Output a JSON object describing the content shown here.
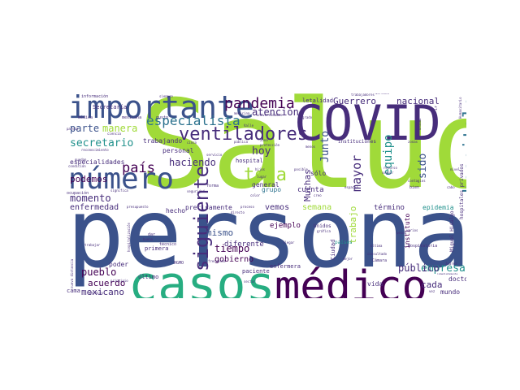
{
  "colors": {
    "background": "#ffffff",
    "c1": "#3b528b",
    "c2": "#440154",
    "c3": "#21918c",
    "c4": "#5ec962",
    "c5": "#a0da39",
    "c6": "#2c728e",
    "c7": "#fde725",
    "c8": "#472d7b",
    "c9": "#27ad81"
  },
  "words": [
    {
      "text": "Salud",
      "c": "c5"
    },
    {
      "text": "persona",
      "c": "c1"
    },
    {
      "text": "casos",
      "c": "c9"
    },
    {
      "text": "médico",
      "c": "c2"
    },
    {
      "text": "COVID",
      "c": "c8"
    },
    {
      "text": "importante",
      "c": "c1"
    },
    {
      "text": "número",
      "c": "c1"
    },
    {
      "text": "hospitales",
      "c": "c6"
    },
    {
      "text": "ventiladores",
      "c": "c8"
    },
    {
      "text": "pandemia",
      "c": "c2"
    },
    {
      "text": "especialista",
      "c": "c6"
    },
    {
      "text": "país",
      "c": "c2"
    },
    {
      "text": "toda",
      "c": "c5"
    },
    {
      "text": "siguiente",
      "c": "c8"
    },
    {
      "text": "mayor",
      "c": "c8"
    },
    {
      "text": "equipo",
      "c": "c3"
    },
    {
      "text": "Junto",
      "c": "c1"
    },
    {
      "text": "sido",
      "c": "c1"
    },
    {
      "text": "Muchas",
      "c": "c8"
    },
    {
      "text": "Guerrero",
      "c": "c8"
    },
    {
      "text": "nacional",
      "c": "c8"
    },
    {
      "text": "secretario",
      "c": "c3"
    },
    {
      "text": "atención",
      "c": "c8"
    },
    {
      "text": "parte",
      "c": "c1"
    },
    {
      "text": "manera",
      "c": "c5"
    },
    {
      "text": "hoy",
      "c": "c8"
    },
    {
      "text": "haciendo",
      "c": "c8"
    },
    {
      "text": "momento",
      "c": "c8"
    },
    {
      "text": "enfermedad",
      "c": "c8"
    },
    {
      "text": "podemos",
      "c": "c2"
    },
    {
      "text": "semana",
      "c": "c5"
    },
    {
      "text": "trabajo",
      "c": "c5"
    },
    {
      "text": "empresa",
      "c": "c3"
    },
    {
      "text": "público",
      "c": "c8"
    },
    {
      "text": "cada",
      "c": "c8"
    },
    {
      "text": "pueblo",
      "c": "c2"
    },
    {
      "text": "acuerdo",
      "c": "c2"
    },
    {
      "text": "mexicano",
      "c": "c8"
    },
    {
      "text": "tiempo",
      "c": "c2"
    },
    {
      "text": "mismo",
      "c": "c1"
    },
    {
      "text": "gobierno",
      "c": "c2"
    },
    {
      "text": "diferente",
      "c": "c8"
    },
    {
      "text": "ejemplo",
      "c": "c2"
    },
    {
      "text": "vemos",
      "c": "c8"
    },
    {
      "text": "cuenta",
      "c": "c8"
    },
    {
      "text": "general",
      "c": "c8"
    },
    {
      "text": "grupo",
      "c": "c6"
    },
    {
      "text": "término",
      "c": "c8"
    },
    {
      "text": "epidemia",
      "c": "c3"
    },
    {
      "text": "instituto",
      "c": "c2"
    },
    {
      "text": "doctor",
      "c": "c8"
    },
    {
      "text": "mundo",
      "c": "c8"
    },
    {
      "text": "vida",
      "c": "c8"
    },
    {
      "text": "sólo",
      "c": "c8"
    },
    {
      "text": "letalidad",
      "c": "c8"
    },
    {
      "text": "trabajando",
      "c": "c8"
    },
    {
      "text": "personal",
      "c": "c8"
    },
    {
      "text": "hospital",
      "c": "c8"
    },
    {
      "text": "especialidades",
      "c": "c8"
    },
    {
      "text": "Secretaría",
      "c": "c8"
    },
    {
      "text": "hecho",
      "c": "c8"
    },
    {
      "text": "poder",
      "c": "c8"
    },
    {
      "text": "último",
      "c": "c8"
    },
    {
      "text": "cama",
      "c": "c8"
    },
    {
      "text": "primera",
      "c": "c8"
    },
    {
      "text": "precisamente",
      "c": "c8"
    },
    {
      "text": "paciente",
      "c": "c8"
    },
    {
      "text": "enfermera",
      "c": "c8"
    },
    {
      "text": "Ciudad",
      "c": "c8"
    },
    {
      "text": "Unidos",
      "c": "c8"
    },
    {
      "text": "países",
      "c": "c3"
    },
    {
      "text": "Cámara",
      "c": "c8"
    },
    {
      "text": "instituciones",
      "c": "c8"
    },
    {
      "text": "hospitales privados",
      "c": "c8"
    },
    {
      "text": "Miguel Hidalgo",
      "c": "c8"
    },
    {
      "text": "información",
      "c": "c8"
    },
    {
      "text": "médica",
      "c": "c8"
    },
    {
      "text": "mexicana",
      "c": "c8"
    },
    {
      "text": "gusto",
      "c": "c8"
    },
    {
      "text": "ocupación",
      "c": "c8"
    },
    {
      "text": "técnico",
      "c": "c8"
    },
    {
      "text": "dar",
      "c": "c8"
    },
    {
      "text": "forma",
      "c": "c8"
    },
    {
      "text": "espacio",
      "c": "c8"
    },
    {
      "text": "bien",
      "c": "c8"
    },
    {
      "text": "seguir",
      "c": "c8"
    },
    {
      "text": "creo",
      "c": "c8"
    },
    {
      "text": "proceso",
      "c": "c8"
    },
    {
      "text": "servicio",
      "c": "c8"
    },
    {
      "text": "pública",
      "c": "c8"
    },
    {
      "text": "zona",
      "c": "c8"
    },
    {
      "text": "protección",
      "c": "c8"
    },
    {
      "text": "medicina",
      "c": "c8"
    },
    {
      "text": "universidades",
      "c": "c8"
    },
    {
      "text": "Valle",
      "c": "c8"
    },
    {
      "text": "cinco",
      "c": "c8"
    },
    {
      "text": "siempre",
      "c": "c8"
    },
    {
      "text": "ciencia",
      "c": "c8"
    },
    {
      "text": "reconocimiento",
      "c": "c8"
    },
    {
      "text": "condición",
      "c": "c8"
    },
    {
      "text": "quedan",
      "c": "c8"
    },
    {
      "text": "parece",
      "c": "c8"
    },
    {
      "text": "trabajar",
      "c": "c8"
    },
    {
      "text": "hospitalización",
      "c": "c8"
    },
    {
      "text": "nueva distancia",
      "c": "c8"
    },
    {
      "text": "permiso",
      "c": "c8"
    },
    {
      "text": "principio",
      "c": "c8"
    },
    {
      "text": "significa",
      "c": "c8"
    },
    {
      "text": "seguridad",
      "c": "c8"
    },
    {
      "text": "frecuente",
      "c": "c8"
    },
    {
      "text": "presupuesto",
      "c": "c8"
    },
    {
      "text": "directo",
      "c": "c8"
    },
    {
      "text": "color",
      "c": "c8"
    },
    {
      "text": "menos",
      "c": "c8"
    },
    {
      "text": "posible",
      "c": "c8"
    },
    {
      "text": "gráfica",
      "c": "c8"
    },
    {
      "text": "varios",
      "c": "c8"
    },
    {
      "text": "consultado",
      "c": "c8"
    },
    {
      "text": "última",
      "c": "c8"
    },
    {
      "text": "mejor",
      "c": "c8"
    },
    {
      "text": "Hospitalaria",
      "c": "c8"
    },
    {
      "text": "pesos",
      "c": "c8"
    },
    {
      "text": "recurso",
      "c": "c8"
    },
    {
      "text": "contagios",
      "c": "c8"
    },
    {
      "text": "cabo",
      "c": "c8"
    },
    {
      "text": "inmediatamente",
      "c": "c8"
    },
    {
      "text": "vez",
      "c": "c8"
    },
    {
      "text": "Humanitario",
      "c": "c8"
    },
    {
      "text": "Unidad",
      "c": "c8"
    },
    {
      "text": "ir",
      "c": "c8"
    },
    {
      "text": "grado",
      "c": "c8"
    },
    {
      "text": "derecho",
      "c": "c8"
    },
    {
      "text": "trabajadores",
      "c": "c8"
    },
    {
      "text": "hijos",
      "c": "c8"
    },
    {
      "text": "lugar",
      "c": "c8"
    },
    {
      "text": "HGMO",
      "c": "c8"
    },
    {
      "text": "bueno",
      "c": "c8"
    },
    {
      "text": "nivel",
      "c": "c8"
    },
    {
      "text": "Juárez",
      "c": "c8"
    },
    {
      "text": "llegar",
      "c": "c8"
    },
    {
      "text": "sector",
      "c": "c8"
    },
    {
      "text": "zonas",
      "c": "c8"
    }
  ]
}
